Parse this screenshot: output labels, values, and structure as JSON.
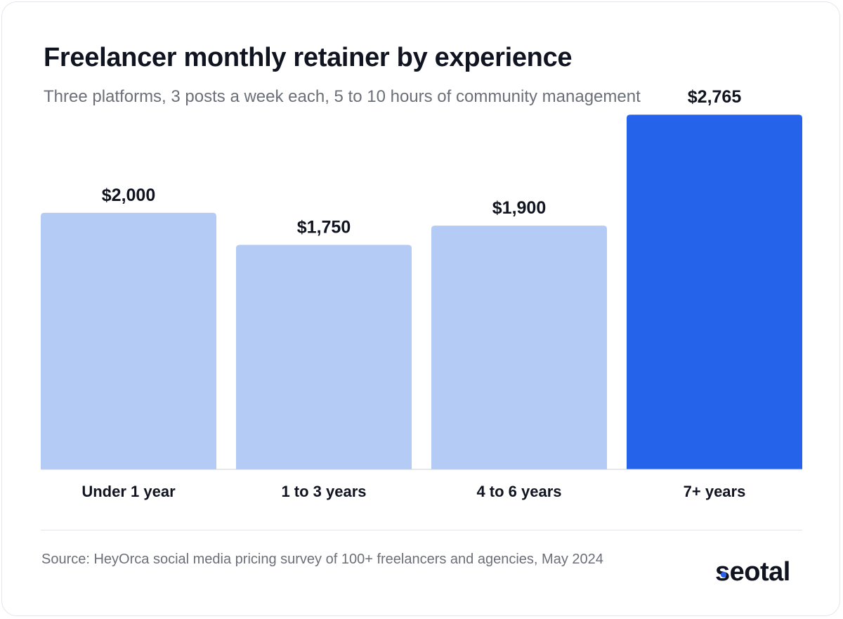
{
  "title": "Freelancer monthly retainer by experience",
  "subtitle": "Three platforms, 3 posts a week each, 5 to 10 hours of community management",
  "source": "Source: HeyOrca social media pricing survey of 100+ freelancers and agencies, May 2024",
  "brand": {
    "logo_text": "seotal",
    "accent": "#2563eb"
  },
  "colors": {
    "bar": "#b4cbf6",
    "bar_highlight": "#2563eb",
    "text": "#0f1420",
    "muted": "#6b6f78"
  },
  "chart_data": {
    "type": "bar",
    "title": "Freelancer monthly retainer by experience",
    "subtitle": "Three platforms, 3 posts a week each, 5 to 10 hours of community management",
    "categories": [
      "Under 1 year",
      "1 to 3 years",
      "4 to 6 years",
      "7+ years"
    ],
    "values": [
      2000,
      1750,
      1900,
      2765
    ],
    "value_labels": [
      "$2,000",
      "$1,750",
      "$1,900",
      "$2,765"
    ],
    "highlight_index": 3,
    "xlabel": "",
    "ylabel": "",
    "ylim": [
      0,
      3659
    ],
    "grid": false,
    "legend": "none"
  }
}
